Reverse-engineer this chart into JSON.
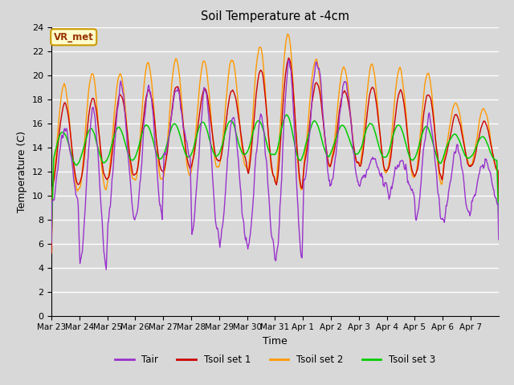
{
  "title": "Soil Temperature at -4cm",
  "xlabel": "Time",
  "ylabel": "Temperature (C)",
  "ylim": [
    0,
    24
  ],
  "yticks": [
    0,
    2,
    4,
    6,
    8,
    10,
    12,
    14,
    16,
    18,
    20,
    22,
    24
  ],
  "x_labels": [
    "Mar 23",
    "Mar 24",
    "Mar 25",
    "Mar 26",
    "Mar 27",
    "Mar 28",
    "Mar 29",
    "Mar 30",
    "Mar 31",
    "Apr 1",
    "Apr 2",
    "Apr 3",
    "Apr 4",
    "Apr 5",
    "Apr 6",
    "Apr 7"
  ],
  "background_color": "#d8d8d8",
  "plot_bg_color": "#d8d8d8",
  "grid_color": "#ffffff",
  "colors": {
    "Tair": "#9933cc",
    "Tsoil1": "#cc0000",
    "Tsoil2": "#ff9900",
    "Tsoil3": "#00cc00"
  },
  "watermark_text": "VR_met",
  "watermark_bg": "#ffffcc",
  "watermark_border": "#cc9900",
  "watermark_text_color": "#993300"
}
